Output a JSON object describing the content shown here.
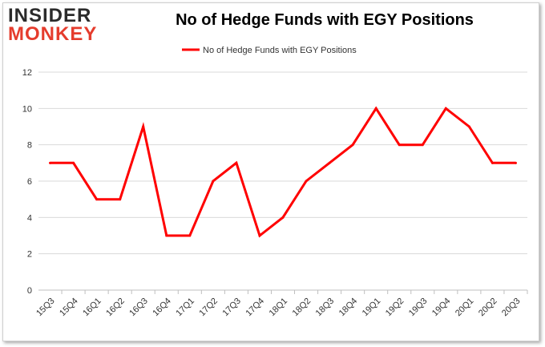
{
  "logo": {
    "line1": "INSIDER",
    "line2": "MONKEY"
  },
  "colors": {
    "line": "#ff0000",
    "grid": "#d9d9d9",
    "logo_dark": "#2b2b2b",
    "logo_red": "#e53c2d"
  },
  "chart_data": {
    "type": "line",
    "title": "No of Hedge Funds with EGY Positions",
    "xlabel": "",
    "ylabel": "",
    "categories": [
      "15Q3",
      "15Q4",
      "16Q1",
      "16Q2",
      "16Q3",
      "16Q4",
      "17Q1",
      "17Q2",
      "17Q3",
      "17Q4",
      "18Q1",
      "18Q2",
      "18Q3",
      "18Q4",
      "19Q1",
      "19Q2",
      "19Q3",
      "19Q4",
      "20Q1",
      "20Q2",
      "20Q3"
    ],
    "series": [
      {
        "name": "No of Hedge Funds with EGY Positions",
        "values": [
          7,
          7,
          5,
          5,
          9,
          3,
          3,
          6,
          7,
          3,
          4,
          6,
          7,
          8,
          10,
          8,
          8,
          10,
          9,
          7,
          7
        ]
      }
    ],
    "ylim": [
      0,
      12
    ],
    "yticks": [
      0,
      2,
      4,
      6,
      8,
      10,
      12
    ],
    "grid": true,
    "legend": "top-center"
  }
}
